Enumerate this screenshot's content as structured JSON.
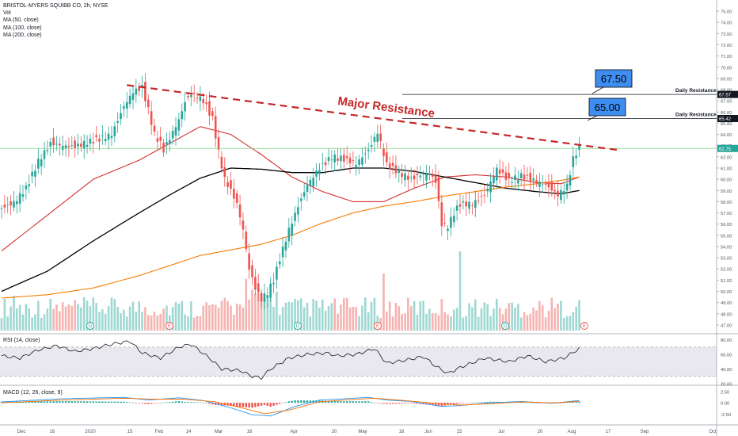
{
  "header": {
    "symbol_line": "BRISTOL-MYERS SQUIBB CO, 2h, NYSE",
    "indicators": [
      "Vol",
      "MA (50, close)",
      "MA (100, close)",
      "MA (200, close)"
    ]
  },
  "annotations": {
    "major_resistance": "Major Resistance",
    "box_high": "67.50",
    "box_low": "65.00",
    "daily_res_label_1": "Daily Resistance",
    "daily_res_label_2": "Daily Resistance"
  },
  "price_tags": {
    "level1": "67.57",
    "level2": "65.42",
    "last": "62.75"
  },
  "rsi_pane": {
    "label": "RSI (14, close)",
    "ticks": [
      "80.00",
      "60.00",
      "40.00",
      "20.00"
    ]
  },
  "macd_pane": {
    "label": "MACD (12, 26, close, 9)",
    "ticks": [
      "2.50",
      "0.00",
      "-2.50"
    ]
  },
  "x_axis": [
    "Dec",
    "16",
    "2020",
    "15",
    "Feb",
    "14",
    "Mar",
    "16",
    "Apr",
    "20",
    "May",
    "18",
    "Jun",
    "15",
    "Jul",
    "20",
    "Aug",
    "17",
    "Sep",
    "Oct"
  ],
  "event_markers": [
    "D",
    "E",
    "D",
    "E",
    "D",
    "E"
  ],
  "colors": {
    "up": "#26a69a",
    "down": "#ef5350",
    "ma50": "#d32f2f",
    "ma100": "#000000",
    "ma200": "#f57c00",
    "resistance": "#c62828",
    "box": "#3d8ef0"
  },
  "chart_data": {
    "type": "candlestick",
    "y_axis_ticks": [
      "75.00",
      "74.00",
      "73.00",
      "72.00",
      "71.00",
      "70.00",
      "69.00",
      "68.00",
      "67.00",
      "66.00",
      "65.00",
      "64.00",
      "63.00",
      "62.00",
      "61.00",
      "60.00",
      "59.00",
      "58.00",
      "57.00",
      "56.00",
      "55.00",
      "54.00",
      "53.00",
      "52.00",
      "51.00",
      "50.00",
      "49.00",
      "48.00",
      "47.00"
    ],
    "ylim": [
      46.5,
      75.5
    ],
    "close_path": [
      [
        0,
        57.4
      ],
      [
        4,
        57.9
      ],
      [
        8,
        59.2
      ],
      [
        12,
        61.6
      ],
      [
        16,
        63.2
      ],
      [
        20,
        63.0
      ],
      [
        24,
        62.9
      ],
      [
        28,
        63.3
      ],
      [
        32,
        63.6
      ],
      [
        36,
        64.0
      ],
      [
        40,
        66.5
      ],
      [
        43,
        67.8
      ],
      [
        46,
        68.2
      ],
      [
        48,
        66.2
      ],
      [
        50,
        64.0
      ],
      [
        52,
        63.2
      ],
      [
        53,
        62.6
      ],
      [
        56,
        64.2
      ],
      [
        58,
        65.3
      ],
      [
        60,
        66.9
      ],
      [
        62,
        67.6
      ],
      [
        64,
        67.4
      ],
      [
        66,
        67.0
      ],
      [
        69,
        65.4
      ],
      [
        71,
        62.4
      ],
      [
        73,
        60.0
      ],
      [
        75,
        59.0
      ],
      [
        77,
        57.8
      ],
      [
        79,
        55.5
      ],
      [
        81,
        52.0
      ],
      [
        83,
        50.3
      ],
      [
        85,
        49.3
      ],
      [
        87,
        49.9
      ],
      [
        89,
        51.0
      ],
      [
        91,
        52.9
      ],
      [
        94,
        55.5
      ],
      [
        97,
        57.6
      ],
      [
        100,
        59.5
      ],
      [
        104,
        61.0
      ],
      [
        108,
        62.0
      ],
      [
        112,
        61.8
      ],
      [
        116,
        61.4
      ],
      [
        120,
        62.6
      ],
      [
        123,
        64.2
      ],
      [
        126,
        61.3
      ],
      [
        130,
        60.6
      ],
      [
        134,
        60.0
      ],
      [
        137,
        60.4
      ],
      [
        140,
        60.5
      ],
      [
        142,
        59.8
      ],
      [
        144,
        56.0
      ],
      [
        146,
        55.8
      ],
      [
        148,
        57.0
      ],
      [
        150,
        57.8
      ],
      [
        154,
        57.8
      ],
      [
        158,
        58.6
      ],
      [
        162,
        60.9
      ],
      [
        166,
        59.9
      ],
      [
        170,
        60.3
      ],
      [
        174,
        59.9
      ],
      [
        178,
        59.5
      ],
      [
        182,
        58.6
      ],
      [
        185,
        59.4
      ],
      [
        187,
        61.8
      ],
      [
        189,
        62.9
      ]
    ],
    "series": [
      {
        "name": "MA (50, close)",
        "points": [
          [
            0,
            53.6
          ],
          [
            15,
            56.8
          ],
          [
            30,
            60.0
          ],
          [
            45,
            61.7
          ],
          [
            55,
            63.2
          ],
          [
            65,
            64.7
          ],
          [
            75,
            64.0
          ],
          [
            85,
            62.2
          ],
          [
            95,
            60.2
          ],
          [
            105,
            58.9
          ],
          [
            115,
            58.0
          ],
          [
            125,
            58.0
          ],
          [
            135,
            59.2
          ],
          [
            145,
            60.2
          ],
          [
            155,
            60.4
          ],
          [
            165,
            60.2
          ],
          [
            175,
            59.7
          ],
          [
            183,
            59.6
          ],
          [
            189,
            60.2
          ]
        ]
      },
      {
        "name": "MA (100, close)",
        "points": [
          [
            0,
            50.0
          ],
          [
            15,
            51.8
          ],
          [
            30,
            54.5
          ],
          [
            45,
            57.0
          ],
          [
            55,
            58.6
          ],
          [
            65,
            60.1
          ],
          [
            75,
            61.0
          ],
          [
            85,
            60.9
          ],
          [
            95,
            60.6
          ],
          [
            105,
            60.6
          ],
          [
            115,
            61.0
          ],
          [
            125,
            61.0
          ],
          [
            135,
            60.7
          ],
          [
            145,
            60.2
          ],
          [
            155,
            59.7
          ],
          [
            165,
            59.2
          ],
          [
            175,
            58.9
          ],
          [
            183,
            58.7
          ],
          [
            189,
            59.0
          ]
        ]
      },
      {
        "name": "MA (200, close)",
        "points": [
          [
            0,
            49.4
          ],
          [
            15,
            49.7
          ],
          [
            30,
            50.3
          ],
          [
            45,
            51.4
          ],
          [
            55,
            52.3
          ],
          [
            65,
            53.2
          ],
          [
            75,
            53.7
          ],
          [
            85,
            54.2
          ],
          [
            95,
            55.0
          ],
          [
            105,
            56.1
          ],
          [
            115,
            57.0
          ],
          [
            125,
            57.6
          ],
          [
            135,
            58.0
          ],
          [
            145,
            58.5
          ],
          [
            155,
            58.9
          ],
          [
            165,
            59.3
          ],
          [
            175,
            59.6
          ],
          [
            183,
            59.9
          ],
          [
            189,
            60.2
          ]
        ]
      }
    ],
    "resistance_line": {
      "from": [
        41,
        68.4
      ],
      "to": [
        202,
        62.6
      ]
    },
    "horizontal_levels": [
      67.57,
      65.42,
      62.75
    ],
    "volume_spike_index": 150,
    "rsi": {
      "ylim": [
        20,
        85
      ],
      "band": [
        30,
        70
      ],
      "points": [
        [
          0,
          58
        ],
        [
          6,
          55
        ],
        [
          12,
          66
        ],
        [
          18,
          72
        ],
        [
          24,
          64
        ],
        [
          30,
          68
        ],
        [
          36,
          74
        ],
        [
          42,
          78
        ],
        [
          46,
          62
        ],
        [
          52,
          55
        ],
        [
          58,
          70
        ],
        [
          62,
          74
        ],
        [
          68,
          55
        ],
        [
          72,
          40
        ],
        [
          78,
          38
        ],
        [
          82,
          30
        ],
        [
          85,
          28
        ],
        [
          88,
          40
        ],
        [
          94,
          55
        ],
        [
          100,
          60
        ],
        [
          106,
          62
        ],
        [
          110,
          58
        ],
        [
          116,
          60
        ],
        [
          122,
          68
        ],
        [
          126,
          48
        ],
        [
          132,
          52
        ],
        [
          138,
          57
        ],
        [
          142,
          44
        ],
        [
          146,
          34
        ],
        [
          150,
          42
        ],
        [
          158,
          55
        ],
        [
          166,
          50
        ],
        [
          172,
          58
        ],
        [
          178,
          50
        ],
        [
          184,
          55
        ],
        [
          189,
          68
        ]
      ]
    },
    "macd": {
      "ylim": [
        -4.5,
        3.5
      ],
      "macd_points": [
        [
          0,
          0.2
        ],
        [
          20,
          0.9
        ],
        [
          40,
          1.2
        ],
        [
          48,
          0.6
        ],
        [
          58,
          1.1
        ],
        [
          66,
          0.5
        ],
        [
          74,
          -0.9
        ],
        [
          82,
          -2.6
        ],
        [
          88,
          -2.9
        ],
        [
          96,
          -0.8
        ],
        [
          104,
          0.6
        ],
        [
          110,
          0.8
        ],
        [
          120,
          1.2
        ],
        [
          126,
          0.6
        ],
        [
          134,
          0.3
        ],
        [
          144,
          -0.8
        ],
        [
          150,
          -0.6
        ],
        [
          160,
          0.0
        ],
        [
          170,
          0.3
        ],
        [
          180,
          -0.1
        ],
        [
          189,
          0.5
        ]
      ],
      "signal_points": [
        [
          0,
          0.0
        ],
        [
          20,
          0.6
        ],
        [
          40,
          1.0
        ],
        [
          50,
          0.8
        ],
        [
          60,
          0.8
        ],
        [
          70,
          0.2
        ],
        [
          78,
          -1.0
        ],
        [
          86,
          -2.4
        ],
        [
          94,
          -1.6
        ],
        [
          104,
          0.2
        ],
        [
          112,
          0.6
        ],
        [
          122,
          1.0
        ],
        [
          130,
          0.6
        ],
        [
          140,
          0.0
        ],
        [
          150,
          -0.5
        ],
        [
          160,
          -0.2
        ],
        [
          170,
          0.2
        ],
        [
          180,
          0.0
        ],
        [
          189,
          0.3
        ]
      ]
    }
  }
}
